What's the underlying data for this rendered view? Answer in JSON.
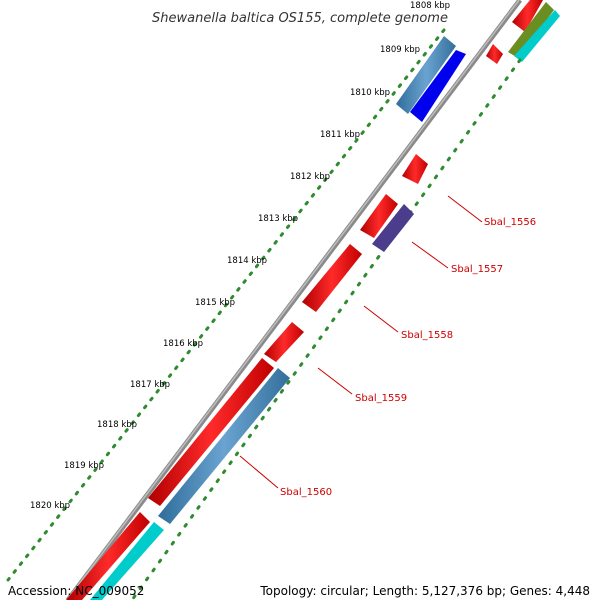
{
  "title": "Shewanella baltica OS155, complete genome",
  "ticks": [
    "1808 kbp",
    "1809 kbp",
    "1810 kbp",
    "1811 kbp",
    "1812 kbp",
    "1813 kbp",
    "1814 kbp",
    "1815 kbp",
    "1816 kbp",
    "1817 kbp",
    "1818 kbp",
    "1819 kbp",
    "1820 kbp"
  ],
  "genes": [
    {
      "label": "Sbal_1556",
      "color": "#ff0000"
    },
    {
      "label": "Sbal_1557",
      "color": "#4b3c8c"
    },
    {
      "label": "Sbal_1558",
      "color": "#ff0000"
    },
    {
      "label": "Sbal_1559",
      "color": "#ff0000"
    },
    {
      "label": "Sbal_1560",
      "color": "#ff0000"
    }
  ],
  "colors": {
    "backbone": "#888888",
    "cds_forward": "#ff0000",
    "cds_reverse_blue": "#4682b4",
    "cds_cyan": "#00cccc",
    "cds_dark_blue": "#0000ee",
    "cds_olive": "#6b8e23",
    "cds_purple": "#4b3c8c",
    "gc_skew_dots": "#2e8b2e",
    "label_color": "#cc0000"
  },
  "footer": {
    "accession": "Accession: NC_009052",
    "summary": "Topology: circular; Length: 5,127,376 bp; Genes: 4,448"
  }
}
